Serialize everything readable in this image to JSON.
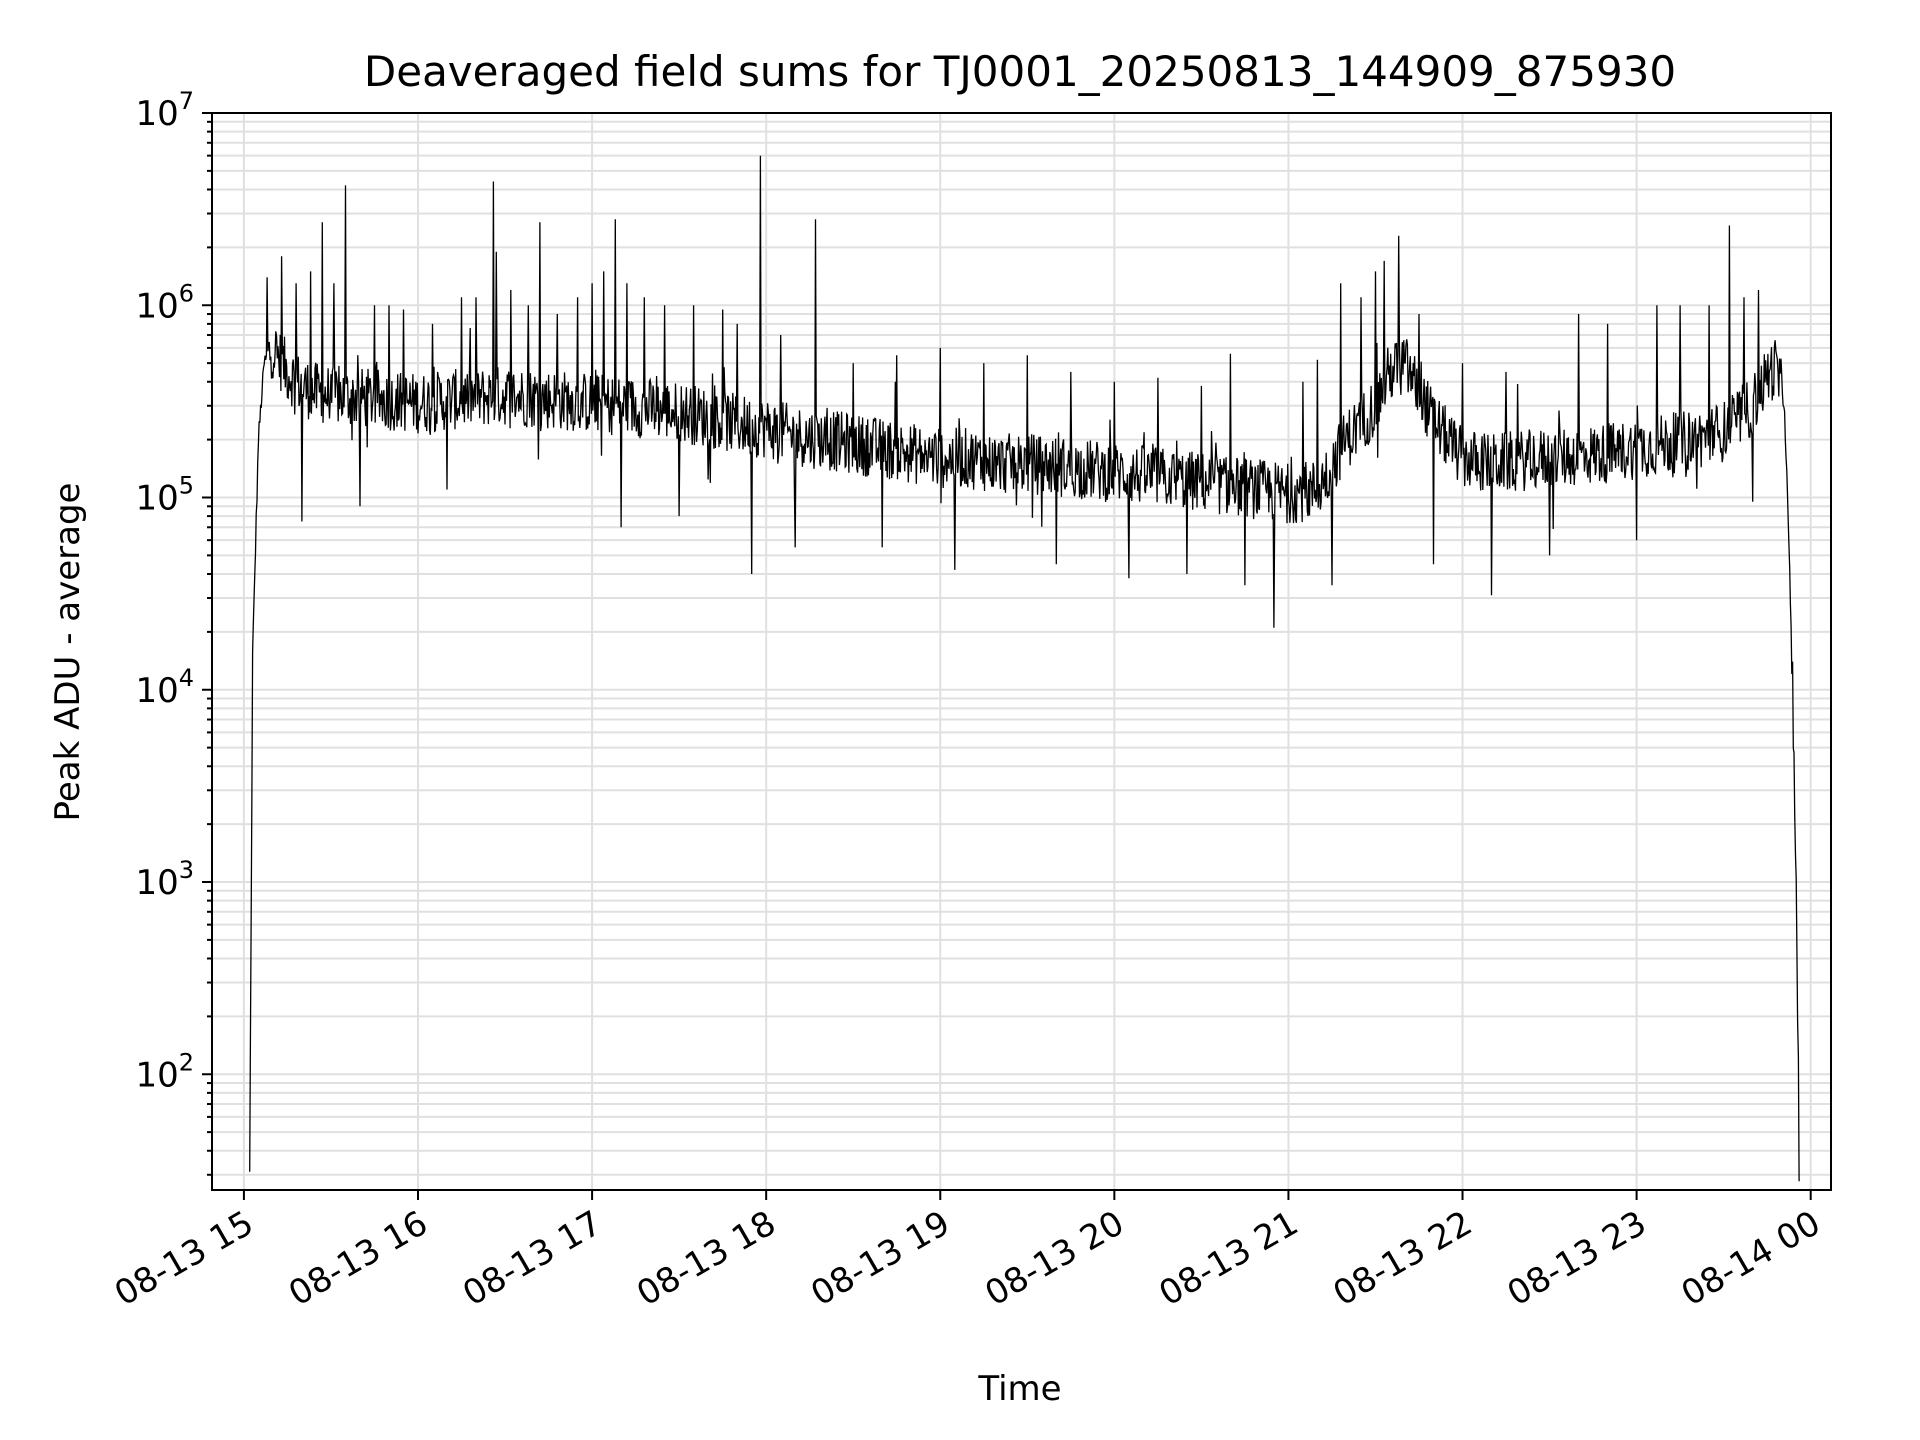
{
  "chart_data": {
    "type": "line",
    "title": "Deaveraged field sums for TJ0001_20250813_144909_875930",
    "xlabel": "Time",
    "ylabel": "Peak ADU - average",
    "y_scale": "log",
    "ylim": [
      25,
      10000000
    ],
    "xlim": [
      "08-13 14:49:00",
      "08-14 00:07:30"
    ],
    "grid": true,
    "line_color": "#000000",
    "grid_color": "#e0e0e0",
    "x_ticks": [
      "08-13 15",
      "08-13 16",
      "08-13 17",
      "08-13 18",
      "08-13 19",
      "08-13 20",
      "08-13 21",
      "08-13 22",
      "08-13 23",
      "08-14 00"
    ],
    "y_ticks": [
      {
        "base": "10",
        "exp": "2",
        "value": 100
      },
      {
        "base": "10",
        "exp": "3",
        "value": 1000
      },
      {
        "base": "10",
        "exp": "4",
        "value": 10000
      },
      {
        "base": "10",
        "exp": "5",
        "value": 100000
      },
      {
        "base": "10",
        "exp": "6",
        "value": 1000000
      },
      {
        "base": "10",
        "exp": "7",
        "value": 10000000
      }
    ],
    "series": [
      {
        "x": [
          "08-13 15:02",
          "08-13 15:03",
          "08-13 15:05",
          "08-13 15:07",
          "08-13 15:10",
          "08-13 15:15",
          "08-13 15:20",
          "08-13 15:25",
          "08-13 15:30",
          "08-13 15:40",
          "08-13 15:50",
          "08-13 16:00",
          "08-13 16:10",
          "08-13 16:20",
          "08-13 16:30",
          "08-13 16:40",
          "08-13 16:50",
          "08-13 17:00",
          "08-13 17:10",
          "08-13 17:20",
          "08-13 17:30",
          "08-13 17:40",
          "08-13 17:50",
          "08-13 18:00",
          "08-13 18:10",
          "08-13 18:20",
          "08-13 18:30",
          "08-13 18:40",
          "08-13 18:50",
          "08-13 19:00",
          "08-13 19:10",
          "08-13 19:20",
          "08-13 19:30",
          "08-13 19:40",
          "08-13 19:50",
          "08-13 20:00",
          "08-13 20:10",
          "08-13 20:20",
          "08-13 20:30",
          "08-13 20:40",
          "08-13 20:50",
          "08-13 21:00",
          "08-13 21:10",
          "08-13 21:15",
          "08-13 21:20",
          "08-13 21:30",
          "08-13 21:35",
          "08-13 21:40",
          "08-13 21:50",
          "08-13 22:00",
          "08-13 22:10",
          "08-13 22:20",
          "08-13 22:30",
          "08-13 22:40",
          "08-13 22:50",
          "08-13 23:00",
          "08-13 23:10",
          "08-13 23:20",
          "08-13 23:30",
          "08-13 23:40",
          "08-13 23:45",
          "08-13 23:48",
          "08-13 23:51",
          "08-13 23:53",
          "08-13 23:55",
          "08-13 23:56"
        ],
        "y": [
          30,
          15000,
          200000,
          500000,
          600000,
          450000,
          380000,
          350000,
          340000,
          330000,
          320000,
          310000,
          320000,
          330000,
          340000,
          330000,
          320000,
          310000,
          300000,
          290000,
          280000,
          260000,
          240000,
          230000,
          210000,
          200000,
          190000,
          180000,
          170000,
          160000,
          160000,
          150000,
          150000,
          145000,
          140000,
          135000,
          130000,
          125000,
          120000,
          115000,
          110000,
          105000,
          110000,
          150000,
          200000,
          300000,
          450000,
          500000,
          250000,
          160000,
          150000,
          155000,
          160000,
          165000,
          170000,
          180000,
          190000,
          200000,
          220000,
          300000,
          430000,
          480000,
          300000,
          30000,
          1000,
          30
        ]
      }
    ],
    "spikes": [
      {
        "x": "08-13 15:08",
        "y": 1400000
      },
      {
        "x": "08-13 15:13",
        "y": 1800000
      },
      {
        "x": "08-13 15:18",
        "y": 1300000
      },
      {
        "x": "08-13 15:23",
        "y": 1500000
      },
      {
        "x": "08-13 15:27",
        "y": 2700000
      },
      {
        "x": "08-13 15:31",
        "y": 1300000
      },
      {
        "x": "08-13 15:35",
        "y": 4200000
      },
      {
        "x": "08-13 15:40",
        "y": 1200000
      },
      {
        "x": "08-13 15:45",
        "y": 1000000
      },
      {
        "x": "08-13 15:50",
        "y": 1000000
      },
      {
        "x": "08-13 15:55",
        "y": 950000
      },
      {
        "x": "08-13 16:05",
        "y": 800000
      },
      {
        "x": "08-13 16:15",
        "y": 1100000
      },
      {
        "x": "08-13 16:20",
        "y": 1100000
      },
      {
        "x": "08-13 16:26",
        "y": 4400000
      },
      {
        "x": "08-13 16:27",
        "y": 1900000
      },
      {
        "x": "08-13 16:32",
        "y": 1200000
      },
      {
        "x": "08-13 16:38",
        "y": 1000000
      },
      {
        "x": "08-13 16:42",
        "y": 2700000
      },
      {
        "x": "08-13 16:48",
        "y": 900000
      },
      {
        "x": "08-13 16:55",
        "y": 1100000
      },
      {
        "x": "08-13 17:00",
        "y": 1300000
      },
      {
        "x": "08-13 17:04",
        "y": 1500000
      },
      {
        "x": "08-13 17:08",
        "y": 2800000
      },
      {
        "x": "08-13 17:12",
        "y": 1300000
      },
      {
        "x": "08-13 17:18",
        "y": 1100000
      },
      {
        "x": "08-13 17:25",
        "y": 1000000
      },
      {
        "x": "08-13 17:30",
        "y": 900000
      },
      {
        "x": "08-13 17:35",
        "y": 1000000
      },
      {
        "x": "08-13 17:45",
        "y": 950000
      },
      {
        "x": "08-13 17:50",
        "y": 800000
      },
      {
        "x": "08-13 17:58",
        "y": 6000000
      },
      {
        "x": "08-13 18:05",
        "y": 700000
      },
      {
        "x": "08-13 18:17",
        "y": 2800000
      },
      {
        "x": "08-13 18:30",
        "y": 500000
      },
      {
        "x": "08-13 18:45",
        "y": 550000
      },
      {
        "x": "08-13 19:00",
        "y": 600000
      },
      {
        "x": "08-13 19:15",
        "y": 500000
      },
      {
        "x": "08-13 19:30",
        "y": 550000
      },
      {
        "x": "08-13 19:45",
        "y": 450000
      },
      {
        "x": "08-13 20:00",
        "y": 400000
      },
      {
        "x": "08-13 20:15",
        "y": 420000
      },
      {
        "x": "08-13 20:30",
        "y": 380000
      },
      {
        "x": "08-13 20:40",
        "y": 560000
      },
      {
        "x": "08-13 20:55",
        "y": 400000
      },
      {
        "x": "08-13 21:05",
        "y": 400000
      },
      {
        "x": "08-13 21:10",
        "y": 520000
      },
      {
        "x": "08-13 21:18",
        "y": 1300000
      },
      {
        "x": "08-13 21:25",
        "y": 1100000
      },
      {
        "x": "08-13 21:30",
        "y": 1500000
      },
      {
        "x": "08-13 21:33",
        "y": 1700000
      },
      {
        "x": "08-13 21:38",
        "y": 2300000
      },
      {
        "x": "08-13 21:45",
        "y": 900000
      },
      {
        "x": "08-13 22:00",
        "y": 500000
      },
      {
        "x": "08-13 22:15",
        "y": 450000
      },
      {
        "x": "08-13 22:30",
        "y": 500000
      },
      {
        "x": "08-13 22:40",
        "y": 900000
      },
      {
        "x": "08-13 22:50",
        "y": 800000
      },
      {
        "x": "08-13 23:00",
        "y": 1200000
      },
      {
        "x": "08-13 23:07",
        "y": 1000000
      },
      {
        "x": "08-13 23:15",
        "y": 1000000
      },
      {
        "x": "08-13 23:25",
        "y": 1000000
      },
      {
        "x": "08-13 23:32",
        "y": 2600000
      },
      {
        "x": "08-13 23:37",
        "y": 1100000
      },
      {
        "x": "08-13 23:42",
        "y": 1200000
      }
    ],
    "dips": [
      {
        "x": "08-13 15:20",
        "y": 75000
      },
      {
        "x": "08-13 15:40",
        "y": 90000
      },
      {
        "x": "08-13 16:10",
        "y": 110000
      },
      {
        "x": "08-13 17:10",
        "y": 70000
      },
      {
        "x": "08-13 17:30",
        "y": 80000
      },
      {
        "x": "08-13 17:55",
        "y": 40000
      },
      {
        "x": "08-13 18:10",
        "y": 55000
      },
      {
        "x": "08-13 18:40",
        "y": 55000
      },
      {
        "x": "08-13 19:05",
        "y": 42000
      },
      {
        "x": "08-13 19:40",
        "y": 45000
      },
      {
        "x": "08-13 20:05",
        "y": 38000
      },
      {
        "x": "08-13 20:25",
        "y": 40000
      },
      {
        "x": "08-13 20:45",
        "y": 35000
      },
      {
        "x": "08-13 20:55",
        "y": 21000
      },
      {
        "x": "08-13 21:15",
        "y": 35000
      },
      {
        "x": "08-13 21:50",
        "y": 45000
      },
      {
        "x": "08-13 22:10",
        "y": 31000
      },
      {
        "x": "08-13 22:30",
        "y": 50000
      },
      {
        "x": "08-13 23:00",
        "y": 60000
      },
      {
        "x": "08-13 23:40",
        "y": 95000
      }
    ]
  }
}
